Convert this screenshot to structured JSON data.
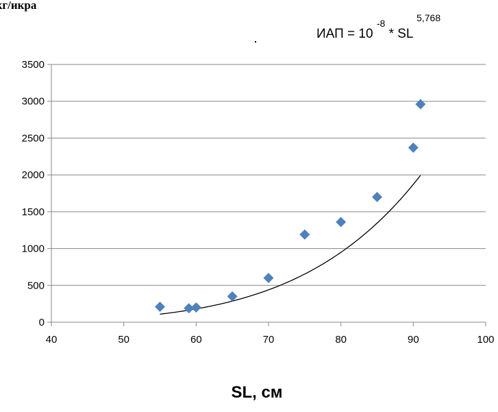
{
  "chart_data": {
    "type": "scatter",
    "ylabel": "мкг/икра",
    "xlabel": "SL, см",
    "xlim": [
      40,
      100
    ],
    "ylim": [
      0,
      3500
    ],
    "x_ticks": [
      40,
      50,
      60,
      70,
      80,
      90,
      100
    ],
    "y_ticks": [
      0,
      500,
      1000,
      1500,
      2000,
      2500,
      3000,
      3500
    ],
    "grid": "horizontal",
    "marker": "diamond",
    "marker_color": "#4F81BD",
    "trendline_color": "#000000",
    "equation": {
      "lhs": "ИАП = 10",
      "exp1": "-8",
      "mid": " * SL",
      "exp2": "5,768"
    },
    "trendline": {
      "form": "power",
      "coefficient": 1e-08,
      "exponent": 5.768,
      "x_range": [
        55,
        91
      ]
    },
    "series": [
      {
        "x": [
          55,
          59,
          60,
          65,
          70,
          75,
          80,
          85,
          90,
          91
        ],
        "y": [
          210,
          190,
          200,
          350,
          600,
          1190,
          1360,
          1700,
          2370,
          2960
        ]
      }
    ]
  }
}
